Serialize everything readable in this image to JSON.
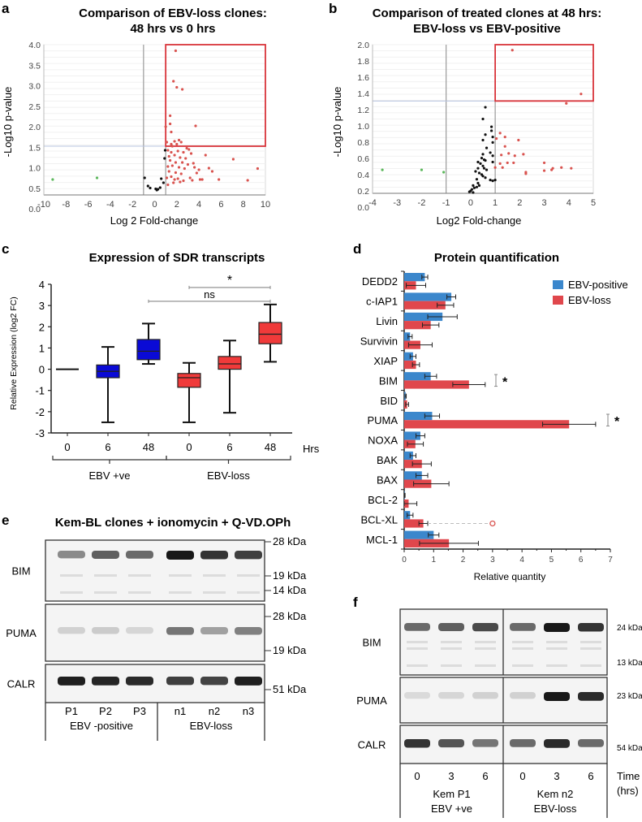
{
  "chart_data": [
    {
      "panel": "a",
      "type": "scatter",
      "title": [
        "Comparison of EBV-loss clones:",
        "48 hrs vs 0 hrs"
      ],
      "xlabel": "Log 2 Fold-change",
      "ylabel": "-Log10 p-value",
      "xlim": [
        -10,
        10
      ],
      "ylim": [
        0.3,
        4.0
      ],
      "xticks": [
        "-10",
        "-8",
        "-6",
        "-4",
        "-2",
        "0",
        "2",
        "4",
        "6",
        "8",
        "10"
      ],
      "yticks": [
        "0.0",
        "0.5",
        "1.0",
        "1.5",
        "2.0",
        "2.5",
        "3.0",
        "3.5",
        "4.0"
      ],
      "thresholds": {
        "x_low": -1,
        "x_high": 1,
        "y": 1.5
      },
      "highlight_box": {
        "x": [
          1,
          10
        ],
        "y": [
          1.5,
          4.0
        ]
      },
      "series": [
        {
          "name": "down",
          "color": "#5cb85c",
          "points": [
            [
              -9.2,
              0.68
            ],
            [
              -5.2,
              0.72
            ]
          ]
        },
        {
          "name": "ns",
          "color": "#111111",
          "points": [
            [
              -0.9,
              0.72
            ],
            [
              -0.6,
              0.52
            ],
            [
              -0.4,
              0.47
            ],
            [
              0.1,
              0.45
            ],
            [
              0.2,
              0.42
            ],
            [
              0.3,
              0.44
            ],
            [
              0.5,
              0.48
            ],
            [
              0.6,
              0.7
            ],
            [
              0.8,
              0.6
            ],
            [
              0.9,
              1.2
            ],
            [
              0.95,
              1.4
            ]
          ]
        },
        {
          "name": "up",
          "color": "#d9534f",
          "points": [
            [
              1.9,
              3.85
            ],
            [
              1.7,
              3.1
            ],
            [
              2.0,
              2.95
            ],
            [
              2.5,
              2.9
            ],
            [
              1.4,
              2.25
            ],
            [
              1.4,
              2.05
            ],
            [
              1.0,
              1.98
            ],
            [
              3.7,
              2.0
            ],
            [
              1.5,
              1.85
            ],
            [
              1.1,
              1.6
            ],
            [
              1.5,
              1.55
            ],
            [
              2.2,
              1.65
            ],
            [
              2.4,
              1.6
            ],
            [
              1.8,
              1.62
            ],
            [
              2.0,
              1.55
            ],
            [
              1.6,
              1.5
            ],
            [
              2.9,
              1.45
            ],
            [
              3.1,
              1.42
            ],
            [
              1.2,
              1.4
            ],
            [
              1.5,
              1.35
            ],
            [
              2.1,
              1.38
            ],
            [
              2.6,
              1.35
            ],
            [
              3.3,
              1.32
            ],
            [
              1.3,
              1.25
            ],
            [
              1.8,
              1.28
            ],
            [
              2.3,
              1.22
            ],
            [
              2.8,
              1.2
            ],
            [
              4.6,
              1.28
            ],
            [
              1.4,
              1.15
            ],
            [
              1.9,
              1.1
            ],
            [
              2.5,
              1.1
            ],
            [
              3.0,
              1.05
            ],
            [
              3.5,
              1.08
            ],
            [
              7.1,
              1.18
            ],
            [
              1.2,
              1.0
            ],
            [
              1.6,
              1.02
            ],
            [
              2.2,
              0.98
            ],
            [
              2.7,
              0.95
            ],
            [
              3.6,
              0.98
            ],
            [
              4.0,
              0.92
            ],
            [
              4.9,
              0.96
            ],
            [
              1.3,
              0.88
            ],
            [
              1.9,
              0.85
            ],
            [
              2.4,
              0.82
            ],
            [
              3.8,
              0.84
            ],
            [
              5.2,
              0.88
            ],
            [
              9.3,
              0.95
            ],
            [
              1.1,
              0.72
            ],
            [
              1.5,
              0.75
            ],
            [
              1.8,
              0.68
            ],
            [
              2.1,
              0.7
            ],
            [
              2.6,
              0.65
            ],
            [
              3.2,
              0.72
            ],
            [
              4.1,
              0.68
            ],
            [
              4.3,
              0.68
            ],
            [
              5.8,
              0.68
            ],
            [
              8.4,
              0.66
            ],
            [
              1.2,
              0.55
            ],
            [
              1.7,
              0.6
            ],
            [
              2.3,
              0.62
            ],
            [
              3.4,
              0.66
            ]
          ]
        }
      ]
    },
    {
      "panel": "b",
      "type": "scatter",
      "title": [
        "Comparison of treated clones at 48 hrs:",
        "EBV-loss vs EBV-positive"
      ],
      "xlabel": "Log2 Fold-change",
      "ylabel": "-Log10 p-value",
      "xlim": [
        -4,
        5
      ],
      "ylim": [
        0.2,
        2.1
      ],
      "xticks": [
        "-4",
        "-3",
        "-2",
        "-1",
        "0",
        "1",
        "2",
        "3",
        "4",
        "5"
      ],
      "yticks": [
        "0.0",
        "0.2",
        "0.4",
        "0.6",
        "0.8",
        "1.0",
        "1.2",
        "1.4",
        "1.6",
        "1.8",
        "2.0"
      ],
      "thresholds": {
        "x_low": -1,
        "x_high": 1,
        "y": 1.38
      },
      "highlight_box": {
        "x": [
          1,
          5
        ],
        "y": [
          1.38,
          2.1
        ]
      },
      "series": [
        {
          "name": "down",
          "color": "#5cb85c",
          "points": [
            [
              -3.6,
              0.5
            ],
            [
              -2.0,
              0.5
            ],
            [
              -1.1,
              0.47
            ]
          ]
        },
        {
          "name": "ns",
          "color": "#111111",
          "points": [
            [
              0.6,
              1.3
            ],
            [
              0.5,
              1.15
            ],
            [
              0.85,
              1.05
            ],
            [
              0.85,
              1.0
            ],
            [
              0.6,
              0.95
            ],
            [
              0.9,
              0.92
            ],
            [
              0.5,
              0.88
            ],
            [
              0.9,
              0.85
            ],
            [
              0.65,
              0.78
            ],
            [
              0.8,
              0.72
            ],
            [
              0.5,
              0.7
            ],
            [
              0.9,
              0.68
            ],
            [
              0.45,
              0.65
            ],
            [
              0.55,
              0.63
            ],
            [
              0.6,
              0.62
            ],
            [
              0.9,
              0.6
            ],
            [
              0.3,
              0.6
            ],
            [
              0.4,
              0.58
            ],
            [
              0.5,
              0.55
            ],
            [
              0.55,
              0.52
            ],
            [
              0.3,
              0.52
            ],
            [
              0.65,
              0.5
            ],
            [
              0.2,
              0.48
            ],
            [
              0.35,
              0.46
            ],
            [
              0.45,
              0.44
            ],
            [
              0.5,
              0.42
            ],
            [
              0.6,
              0.4
            ],
            [
              0.8,
              0.37
            ],
            [
              0.9,
              0.36
            ],
            [
              1.0,
              0.37
            ],
            [
              0.25,
              0.38
            ],
            [
              0.3,
              0.33
            ],
            [
              0.35,
              0.3
            ],
            [
              0.25,
              0.28
            ],
            [
              0.1,
              0.3
            ],
            [
              0.15,
              0.27
            ],
            [
              0.05,
              0.25
            ],
            [
              0.0,
              0.23
            ],
            [
              -0.05,
              0.22
            ],
            [
              0.1,
              0.21
            ]
          ]
        },
        {
          "name": "up",
          "color": "#d9534f",
          "points": [
            [
              1.7,
              2.03
            ],
            [
              4.5,
              1.47
            ],
            [
              3.9,
              1.35
            ],
            [
              1.2,
              0.97
            ],
            [
              1.4,
              0.92
            ],
            [
              1.05,
              0.9
            ],
            [
              1.95,
              0.88
            ],
            [
              1.4,
              0.8
            ],
            [
              1.25,
              0.69
            ],
            [
              1.55,
              0.71
            ],
            [
              2.15,
              0.7
            ],
            [
              1.8,
              0.68
            ],
            [
              1.2,
              0.58
            ],
            [
              1.5,
              0.59
            ],
            [
              1.75,
              0.59
            ],
            [
              3.0,
              0.59
            ],
            [
              1.0,
              0.53
            ],
            [
              1.3,
              0.53
            ],
            [
              3.0,
              0.49
            ],
            [
              3.3,
              0.5
            ],
            [
              3.35,
              0.52
            ],
            [
              3.7,
              0.53
            ],
            [
              4.1,
              0.52
            ],
            [
              2.25,
              0.47
            ],
            [
              2.25,
              0.45
            ]
          ]
        }
      ]
    },
    {
      "panel": "c",
      "type": "box",
      "title": "Expression of SDR transcripts",
      "ylabel": "Relative Expression (log2 FC)",
      "ylim": [
        -3,
        4
      ],
      "yticks": [
        "-3",
        "-2",
        "-1",
        "0",
        "1",
        "2",
        "3",
        "4"
      ],
      "x_unit_label": "Hrs",
      "categories": [
        "0",
        "6",
        "48",
        "0",
        "6",
        "48"
      ],
      "groups": [
        {
          "label": "EBV +ve",
          "members": [
            0,
            1,
            2
          ]
        },
        {
          "label": "EBV-loss",
          "members": [
            3,
            4,
            5
          ]
        }
      ],
      "boxes": [
        {
          "color": "#0a0ad6",
          "min": 0,
          "q1": 0,
          "median": 0,
          "q3": 0,
          "max": 0
        },
        {
          "color": "#0a0ad6",
          "min": -2.5,
          "q1": -0.4,
          "median": -0.1,
          "q3": 0.2,
          "max": 1.05
        },
        {
          "color": "#0a0ad6",
          "min": 0.25,
          "q1": 0.45,
          "median": 0.85,
          "q3": 1.4,
          "max": 2.15
        },
        {
          "color": "#f03a3a",
          "min": -2.5,
          "q1": -0.85,
          "median": -0.4,
          "q3": -0.2,
          "max": 0.3
        },
        {
          "color": "#f03a3a",
          "min": -2.05,
          "q1": 0.0,
          "median": 0.25,
          "q3": 0.6,
          "max": 1.35
        },
        {
          "color": "#f03a3a",
          "min": 0.35,
          "q1": 1.2,
          "median": 1.65,
          "q3": 2.2,
          "max": 3.05
        }
      ],
      "annotations": [
        {
          "text": "*",
          "from": 3,
          "to": 5,
          "y": 3.85
        },
        {
          "text": "ns",
          "from": 2,
          "to": 5,
          "y": 3.2
        }
      ]
    },
    {
      "panel": "d",
      "type": "bar",
      "orientation": "horizontal",
      "title": "Protein quantification",
      "xlabel": "Relative quantity",
      "xlim": [
        0,
        7
      ],
      "xticks": [
        "0",
        "1",
        "2",
        "3",
        "4",
        "5",
        "6",
        "7"
      ],
      "legend": "top-right",
      "categories": [
        "DEDD2",
        "c-IAP1",
        "Livin",
        "Survivin",
        "XIAP",
        "BIM",
        "BID",
        "PUMA",
        "NOXA",
        "BAK",
        "BAX",
        "BCL-2",
        "BCL-XL",
        "MCL-1"
      ],
      "series": [
        {
          "name": "EBV-positive",
          "color": "#3b87cc",
          "values": [
            0.7,
            1.6,
            1.3,
            0.2,
            0.3,
            0.9,
            0.05,
            0.95,
            0.55,
            0.3,
            0.6,
            0.02,
            0.2,
            1.0
          ],
          "errors": [
            0.1,
            0.15,
            0.5,
            0.07,
            0.1,
            0.2,
            0.02,
            0.25,
            0.15,
            0.1,
            0.2,
            0.01,
            0.1,
            0.18
          ]
        },
        {
          "name": "EBV-loss",
          "color": "#e0474c",
          "values": [
            0.4,
            1.4,
            0.9,
            0.55,
            0.4,
            2.2,
            0.1,
            5.6,
            0.38,
            0.6,
            0.92,
            0.15,
            0.65,
            1.52
          ],
          "errors": [
            0.33,
            0.28,
            0.28,
            0.4,
            0.12,
            0.55,
            0.05,
            0.9,
            0.27,
            0.32,
            0.6,
            0.28,
            0.15,
            1.0
          ]
        }
      ],
      "significance": [
        {
          "category": "BIM",
          "text": "*"
        },
        {
          "category": "PUMA",
          "text": "*"
        }
      ],
      "outlier": {
        "category": "BCL-XL",
        "value": 3.0
      }
    }
  ],
  "blots": [
    {
      "panel": "e",
      "title": "Kem-BL clones + ionomycin + Q-VD.OPh",
      "rows": [
        {
          "label": "BIM",
          "markers": [
            "28 kDa",
            "19 kDa",
            "14 kDa"
          ],
          "intensities": [
            0.45,
            0.65,
            0.6,
            0.98,
            0.85,
            0.8
          ]
        },
        {
          "label": "PUMA",
          "markers": [
            "28 kDa",
            "19 kDa"
          ],
          "intensities": [
            0.12,
            0.15,
            0.1,
            0.55,
            0.35,
            0.5
          ]
        },
        {
          "label": "CALR",
          "markers": [
            "51 kDa"
          ],
          "intensities": [
            0.95,
            0.92,
            0.9,
            0.8,
            0.78,
            0.95
          ]
        }
      ],
      "lanes": [
        "P1",
        "P2",
        "P3",
        "n1",
        "n2",
        "n3"
      ],
      "groups": [
        {
          "label": "EBV -positive"
        },
        {
          "label": "EBV-loss"
        }
      ]
    },
    {
      "panel": "f",
      "rows": [
        {
          "label": "BIM",
          "markers": [
            "24 kDa",
            "13 kDa"
          ],
          "intensities": [
            0.6,
            0.65,
            0.75,
            0.6,
            0.98,
            0.85
          ]
        },
        {
          "label": "PUMA",
          "markers": [
            "23 kDa"
          ],
          "intensities": [
            0.08,
            0.1,
            0.12,
            0.12,
            0.98,
            0.9
          ]
        },
        {
          "label": "CALR",
          "markers": [
            "54 kDa"
          ],
          "intensities": [
            0.85,
            0.7,
            0.55,
            0.6,
            0.9,
            0.6
          ]
        }
      ],
      "lanes": [
        "0",
        "3",
        "6",
        "0",
        "3",
        "6"
      ],
      "lane_unit": [
        "Time",
        "(hrs)"
      ],
      "groups": [
        {
          "label": [
            "Kem P1",
            "EBV +ve"
          ]
        },
        {
          "label": [
            "Kem n2",
            "EBV-loss"
          ]
        }
      ]
    }
  ],
  "panel_labels": [
    "a",
    "b",
    "c",
    "d",
    "e",
    "f"
  ]
}
